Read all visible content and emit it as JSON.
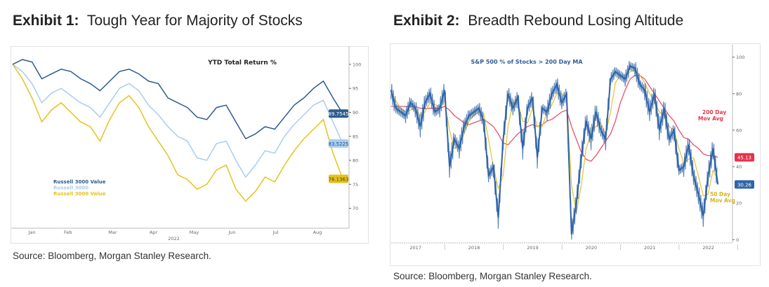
{
  "exhibit1": {
    "label": "Exhibit 1:",
    "title": "Tough Year for Majority of Stocks",
    "source": "Source: Bloomberg, Morgan Stanley Research."
  },
  "exhibit2": {
    "label": "Exhibit 2:",
    "title": "Breadth Rebound Losing Altitude",
    "source": "Source: Bloomberg, Morgan Stanley Research."
  },
  "chart_data": [
    {
      "type": "line",
      "title": "YTD Total Return %",
      "x_unit": "weeks since Jan 3, 2022",
      "x": [
        0,
        1,
        2,
        3,
        4,
        5,
        6,
        7,
        8,
        9,
        10,
        11,
        12,
        13,
        14,
        15,
        16,
        17,
        18,
        19,
        20,
        21,
        22,
        23,
        24,
        25,
        26,
        27,
        28,
        29,
        30,
        31,
        32,
        33,
        34
      ],
      "xticks": [
        {
          "label": "Jan",
          "at": 2
        },
        {
          "label": "Feb",
          "at": 5.7
        },
        {
          "label": "Mar",
          "at": 10.3
        },
        {
          "label": "Apr",
          "at": 14.5
        },
        {
          "label": "May",
          "at": 18.7
        },
        {
          "label": "Jun",
          "at": 22.6
        },
        {
          "label": "Jul",
          "at": 27.1
        },
        {
          "label": "Aug",
          "at": 31.4
        }
      ],
      "xyear": {
        "label": "2022",
        "at": 16.6
      },
      "ylim": [
        66,
        103.2
      ],
      "yticks": [
        100,
        95,
        90,
        85,
        80,
        75,
        70
      ],
      "legend_placement": "left-middle",
      "series": [
        {
          "name": "Russell 3000 Value",
          "color": "#2b5c8f",
          "last_label": "89.7545",
          "values": [
            100,
            101,
            100.5,
            97,
            98,
            99,
            98.5,
            97,
            96,
            94.5,
            96.5,
            98.5,
            99,
            98,
            96.5,
            96,
            93,
            92,
            91,
            89,
            88.5,
            91,
            91.5,
            88,
            84.5,
            85.5,
            87,
            86.5,
            89,
            91.5,
            93,
            95,
            96.5,
            93,
            89.75
          ]
        },
        {
          "name": "Russell 3000",
          "color": "#a9cdef",
          "last_label": "83.5225",
          "values": [
            100,
            98.5,
            96,
            92,
            94,
            95,
            93.5,
            92,
            91,
            89,
            92,
            95,
            96,
            94.5,
            91.5,
            89.5,
            87,
            85,
            84,
            80.5,
            80,
            83.5,
            84,
            80,
            76.5,
            79,
            82,
            81.5,
            85,
            87.5,
            89.5,
            91.5,
            92.5,
            88,
            83.5
          ]
        },
        {
          "name": "Russell 3000 Value",
          "color": "#e6c21e",
          "last_label": "76.1363",
          "values": [
            100,
            97,
            93,
            88,
            90.5,
            92,
            90,
            88,
            87,
            84,
            88.5,
            92,
            93.5,
            91,
            87,
            84,
            81,
            77,
            76,
            74,
            75,
            78,
            79,
            74,
            71.5,
            73.5,
            76.5,
            75.5,
            79,
            82,
            84.5,
            86.5,
            88.5,
            81.5,
            76.14
          ]
        }
      ]
    },
    {
      "type": "line",
      "title": "S&P 500 % of Stocks > 200 Day MA",
      "x_unit": "year",
      "x_start": 2017.08,
      "x_step": 0.08333,
      "xlim": [
        2017.0,
        2022.9
      ],
      "xticks": [
        "2017",
        "2018",
        "2019",
        "2020",
        "2021",
        "2022"
      ],
      "ylim": [
        -1,
        106
      ],
      "yticks": [
        100,
        80,
        60,
        40,
        20,
        0
      ],
      "series": [
        {
          "name": "S&P 500 % of Stocks > 200 Day MA",
          "color": "#2f64a8",
          "last_label": "30.26",
          "values": [
            82,
            72,
            70,
            68,
            75,
            72,
            62,
            75,
            80,
            70,
            72,
            82,
            40,
            55,
            50,
            62,
            68,
            70,
            72,
            65,
            35,
            40,
            12,
            55,
            80,
            72,
            78,
            50,
            72,
            78,
            45,
            72,
            70,
            80,
            85,
            75,
            80,
            3,
            20,
            45,
            65,
            55,
            70,
            60,
            55,
            88,
            92,
            90,
            88,
            95,
            94,
            85,
            82,
            70,
            80,
            60,
            72,
            55,
            60,
            38,
            40,
            52,
            35,
            25,
            13,
            35,
            50,
            30.26
          ]
        },
        {
          "name": "200 Day Mov Avg",
          "color": "#e8506a",
          "last_label": "45.13",
          "values": [
            73,
            73,
            73,
            73,
            73,
            73,
            72,
            72,
            72,
            72,
            72,
            73,
            71,
            68,
            66,
            64,
            63,
            64,
            65,
            66,
            64,
            62,
            58,
            53,
            52,
            55,
            58,
            60,
            62,
            63,
            62,
            63,
            65,
            66,
            68,
            70,
            71,
            62,
            55,
            48,
            44,
            43,
            46,
            50,
            54,
            58,
            65,
            75,
            82,
            88,
            90,
            90,
            88,
            84,
            80,
            76,
            72,
            68,
            65,
            60,
            56,
            55,
            52,
            50,
            47,
            46,
            46,
            45.13
          ]
        },
        {
          "name": "50 Day Mov Avg",
          "color": "#e8c53a",
          "values": [
            79,
            76,
            72,
            70,
            71,
            72,
            68,
            70,
            75,
            74,
            73,
            76,
            60,
            50,
            52,
            58,
            65,
            68,
            70,
            69,
            55,
            40,
            28,
            35,
            62,
            75,
            75,
            65,
            64,
            72,
            62,
            62,
            70,
            74,
            80,
            80,
            78,
            30,
            15,
            30,
            50,
            58,
            62,
            64,
            58,
            70,
            86,
            90,
            90,
            92,
            93,
            90,
            86,
            80,
            76,
            70,
            68,
            62,
            60,
            50,
            42,
            44,
            45,
            35,
            24,
            25,
            38,
            33
          ]
        }
      ],
      "annotations": {
        "ma200_line1": "200 Day",
        "ma200_line2": "Mov Avg",
        "ma50_line1": "50 Day",
        "ma50_line2": "Mov Avg"
      }
    }
  ]
}
